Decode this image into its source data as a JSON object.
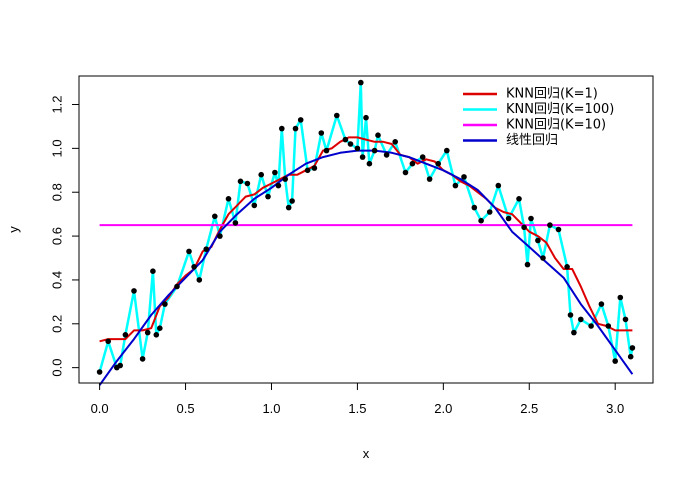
{
  "chart_data": {
    "type": "scatter",
    "title": "",
    "xlabel": "x",
    "ylabel": "y",
    "xlim": [
      -0.12,
      3.22
    ],
    "ylim": [
      -0.07,
      1.33
    ],
    "xticks": [
      0.0,
      0.5,
      1.0,
      1.5,
      2.0,
      2.5,
      3.0
    ],
    "xtick_labels": [
      "0.0",
      "0.5",
      "1.0",
      "1.5",
      "2.0",
      "2.5",
      "3.0"
    ],
    "yticks": [
      0.0,
      0.2,
      0.4,
      0.6,
      0.8,
      1.0,
      1.2
    ],
    "ytick_labels": [
      "0.0",
      "0.2",
      "0.4",
      "0.6",
      "0.8",
      "1.0",
      "1.2"
    ],
    "grid": false,
    "legend_position": "top-right",
    "points": {
      "x": [
        0.0,
        0.05,
        0.1,
        0.12,
        0.15,
        0.2,
        0.25,
        0.28,
        0.31,
        0.33,
        0.35,
        0.38,
        0.45,
        0.52,
        0.55,
        0.58,
        0.62,
        0.67,
        0.7,
        0.75,
        0.79,
        0.82,
        0.86,
        0.9,
        0.94,
        0.98,
        1.02,
        1.04,
        1.06,
        1.08,
        1.1,
        1.12,
        1.14,
        1.17,
        1.21,
        1.25,
        1.29,
        1.32,
        1.38,
        1.43,
        1.46,
        1.5,
        1.52,
        1.53,
        1.55,
        1.57,
        1.6,
        1.62,
        1.67,
        1.72,
        1.78,
        1.82,
        1.88,
        1.92,
        1.97,
        2.02,
        2.07,
        2.12,
        2.18,
        2.22,
        2.27,
        2.32,
        2.38,
        2.44,
        2.47,
        2.49,
        2.51,
        2.55,
        2.58,
        2.62,
        2.67,
        2.72,
        2.74,
        2.76,
        2.8,
        2.86,
        2.92,
        2.96,
        3.0,
        3.03,
        3.06,
        3.09,
        3.1
      ],
      "y": [
        -0.02,
        0.12,
        0.0,
        0.01,
        0.15,
        0.35,
        0.04,
        0.16,
        0.44,
        0.15,
        0.18,
        0.29,
        0.37,
        0.53,
        0.46,
        0.4,
        0.54,
        0.69,
        0.6,
        0.77,
        0.66,
        0.85,
        0.84,
        0.74,
        0.88,
        0.78,
        0.89,
        0.83,
        1.09,
        0.86,
        0.73,
        0.76,
        1.09,
        1.13,
        0.9,
        0.91,
        1.07,
        0.99,
        1.15,
        1.04,
        1.02,
        1.0,
        1.3,
        0.96,
        1.14,
        0.93,
        0.99,
        1.06,
        0.97,
        1.03,
        0.89,
        0.93,
        0.96,
        0.86,
        0.93,
        0.99,
        0.83,
        0.87,
        0.73,
        0.67,
        0.71,
        0.83,
        0.68,
        0.77,
        0.64,
        0.47,
        0.68,
        0.58,
        0.5,
        0.65,
        0.63,
        0.46,
        0.24,
        0.16,
        0.22,
        0.19,
        0.29,
        0.19,
        0.03,
        0.32,
        0.22,
        0.05,
        0.09
      ]
    },
    "series": [
      {
        "name": "KNN回归(K=1)",
        "color": "#dd0000",
        "x": [
          0.0,
          0.05,
          0.1,
          0.15,
          0.2,
          0.25,
          0.3,
          0.35,
          0.4,
          0.45,
          0.5,
          0.55,
          0.6,
          0.65,
          0.7,
          0.75,
          0.8,
          0.85,
          0.9,
          0.95,
          1.0,
          1.05,
          1.1,
          1.15,
          1.2,
          1.25,
          1.3,
          1.35,
          1.4,
          1.45,
          1.5,
          1.55,
          1.6,
          1.65,
          1.7,
          1.75,
          1.8,
          1.85,
          1.9,
          1.95,
          2.0,
          2.05,
          2.1,
          2.15,
          2.2,
          2.25,
          2.3,
          2.35,
          2.4,
          2.45,
          2.5,
          2.55,
          2.6,
          2.65,
          2.7,
          2.75,
          2.8,
          2.85,
          2.9,
          2.95,
          3.0,
          3.05,
          3.1
        ],
        "y": [
          0.12,
          0.13,
          0.13,
          0.13,
          0.17,
          0.17,
          0.18,
          0.28,
          0.32,
          0.38,
          0.42,
          0.45,
          0.53,
          0.55,
          0.63,
          0.7,
          0.74,
          0.78,
          0.79,
          0.82,
          0.84,
          0.86,
          0.88,
          0.88,
          0.9,
          0.92,
          0.99,
          1.0,
          1.03,
          1.05,
          1.05,
          1.04,
          1.03,
          1.03,
          1.02,
          0.97,
          0.96,
          0.93,
          0.95,
          0.94,
          0.9,
          0.88,
          0.85,
          0.83,
          0.8,
          0.77,
          0.73,
          0.71,
          0.7,
          0.66,
          0.62,
          0.6,
          0.57,
          0.5,
          0.45,
          0.45,
          0.37,
          0.28,
          0.2,
          0.19,
          0.17,
          0.17,
          0.17
        ]
      },
      {
        "name": "KNN回归(K=100)",
        "color": "#00ffff",
        "x": [
          0.0,
          0.05,
          0.1,
          0.12,
          0.15,
          0.2,
          0.25,
          0.28,
          0.31,
          0.33,
          0.35,
          0.38,
          0.45,
          0.52,
          0.55,
          0.58,
          0.62,
          0.67,
          0.7,
          0.75,
          0.79,
          0.82,
          0.86,
          0.9,
          0.94,
          0.98,
          1.02,
          1.04,
          1.06,
          1.08,
          1.1,
          1.12,
          1.14,
          1.17,
          1.21,
          1.25,
          1.29,
          1.32,
          1.38,
          1.43,
          1.46,
          1.5,
          1.52,
          1.53,
          1.55,
          1.57,
          1.6,
          1.62,
          1.67,
          1.72,
          1.78,
          1.82,
          1.88,
          1.92,
          1.97,
          2.02,
          2.07,
          2.12,
          2.18,
          2.22,
          2.27,
          2.32,
          2.38,
          2.44,
          2.47,
          2.49,
          2.51,
          2.55,
          2.58,
          2.62,
          2.67,
          2.72,
          2.74,
          2.76,
          2.8,
          2.86,
          2.92,
          2.96,
          3.0,
          3.03,
          3.06,
          3.09,
          3.1
        ],
        "y": [
          -0.02,
          0.12,
          0.0,
          0.01,
          0.15,
          0.35,
          0.04,
          0.16,
          0.44,
          0.15,
          0.18,
          0.29,
          0.37,
          0.53,
          0.46,
          0.4,
          0.54,
          0.69,
          0.6,
          0.77,
          0.66,
          0.85,
          0.84,
          0.74,
          0.88,
          0.78,
          0.89,
          0.83,
          1.09,
          0.86,
          0.73,
          0.76,
          1.09,
          1.13,
          0.9,
          0.91,
          1.07,
          0.99,
          1.15,
          1.04,
          1.02,
          1.0,
          1.3,
          0.96,
          1.14,
          0.93,
          0.99,
          1.06,
          0.97,
          1.03,
          0.89,
          0.93,
          0.96,
          0.86,
          0.93,
          0.99,
          0.83,
          0.87,
          0.73,
          0.67,
          0.71,
          0.83,
          0.68,
          0.77,
          0.64,
          0.47,
          0.68,
          0.58,
          0.5,
          0.65,
          0.63,
          0.46,
          0.24,
          0.16,
          0.22,
          0.19,
          0.29,
          0.19,
          0.03,
          0.32,
          0.22,
          0.05,
          0.09
        ]
      },
      {
        "name": "KNN回归(K=10)",
        "color": "#ff00ff",
        "x": [
          0.0,
          3.1
        ],
        "y": [
          0.65,
          0.65
        ]
      },
      {
        "name": "线性回归",
        "color": "#0000cc",
        "x": [
          0.0,
          0.1,
          0.2,
          0.3,
          0.4,
          0.5,
          0.6,
          0.7,
          0.8,
          0.9,
          1.0,
          1.1,
          1.2,
          1.3,
          1.4,
          1.5,
          1.6,
          1.7,
          1.8,
          1.9,
          2.0,
          2.1,
          2.2,
          2.3,
          2.4,
          2.5,
          2.6,
          2.7,
          2.8,
          2.9,
          3.0,
          3.1
        ],
        "y": [
          -0.08,
          0.03,
          0.13,
          0.24,
          0.33,
          0.41,
          0.49,
          0.62,
          0.7,
          0.77,
          0.82,
          0.88,
          0.93,
          0.96,
          0.98,
          0.99,
          0.99,
          0.98,
          0.96,
          0.93,
          0.9,
          0.86,
          0.81,
          0.73,
          0.62,
          0.55,
          0.48,
          0.41,
          0.29,
          0.19,
          0.08,
          -0.03
        ]
      }
    ]
  }
}
